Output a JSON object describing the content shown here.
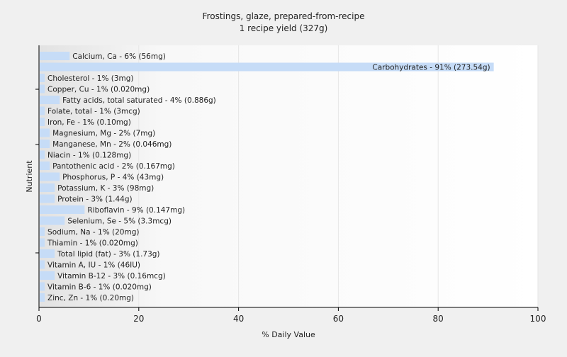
{
  "chart_data": {
    "type": "bar",
    "orientation": "horizontal",
    "title": "Frostings, glaze, prepared-from-recipe",
    "subtitle": "1 recipe yield (327g)",
    "xlabel": "% Daily Value",
    "ylabel": "Nutrient",
    "xlim": [
      0,
      100
    ],
    "xticks": [
      0,
      20,
      40,
      60,
      80,
      100
    ],
    "grid": true,
    "bar_color": "#c6dcf7",
    "categories": [
      "Calcium, Ca",
      "Carbohydrates",
      "Cholesterol",
      "Copper, Cu",
      "Fatty acids, total saturated",
      "Folate, total",
      "Iron, Fe",
      "Magnesium, Mg",
      "Manganese, Mn",
      "Niacin",
      "Pantothenic acid",
      "Phosphorus, P",
      "Potassium, K",
      "Protein",
      "Riboflavin",
      "Selenium, Se",
      "Sodium, Na",
      "Thiamin",
      "Total lipid (fat)",
      "Vitamin A, IU",
      "Vitamin B-12",
      "Vitamin B-6",
      "Zinc, Zn"
    ],
    "values": [
      6,
      91,
      1,
      1,
      4,
      1,
      1,
      2,
      2,
      1,
      2,
      4,
      3,
      3,
      9,
      5,
      1,
      1,
      3,
      1,
      3,
      1,
      1
    ],
    "labels": [
      "Calcium, Ca - 6% (56mg)",
      "Carbohydrates - 91% (273.54g)",
      "Cholesterol - 1% (3mg)",
      "Copper, Cu - 1% (0.020mg)",
      "Fatty acids, total saturated - 4% (0.886g)",
      "Folate, total - 1% (3mcg)",
      "Iron, Fe - 1% (0.10mg)",
      "Magnesium, Mg - 2% (7mg)",
      "Manganese, Mn - 2% (0.046mg)",
      "Niacin - 1% (0.128mg)",
      "Pantothenic acid - 2% (0.167mg)",
      "Phosphorus, P - 4% (43mg)",
      "Potassium, K - 3% (98mg)",
      "Protein - 3% (1.44g)",
      "Riboflavin - 9% (0.147mg)",
      "Selenium, Se - 5% (3.3mcg)",
      "Sodium, Na - 1% (20mg)",
      "Thiamin - 1% (0.020mg)",
      "Total lipid (fat) - 3% (1.73g)",
      "Vitamin A, IU - 1% (46IU)",
      "Vitamin B-12 - 3% (0.16mcg)",
      "Vitamin B-6 - 1% (0.020mg)",
      "Zinc, Zn - 1% (0.20mg)"
    ]
  }
}
